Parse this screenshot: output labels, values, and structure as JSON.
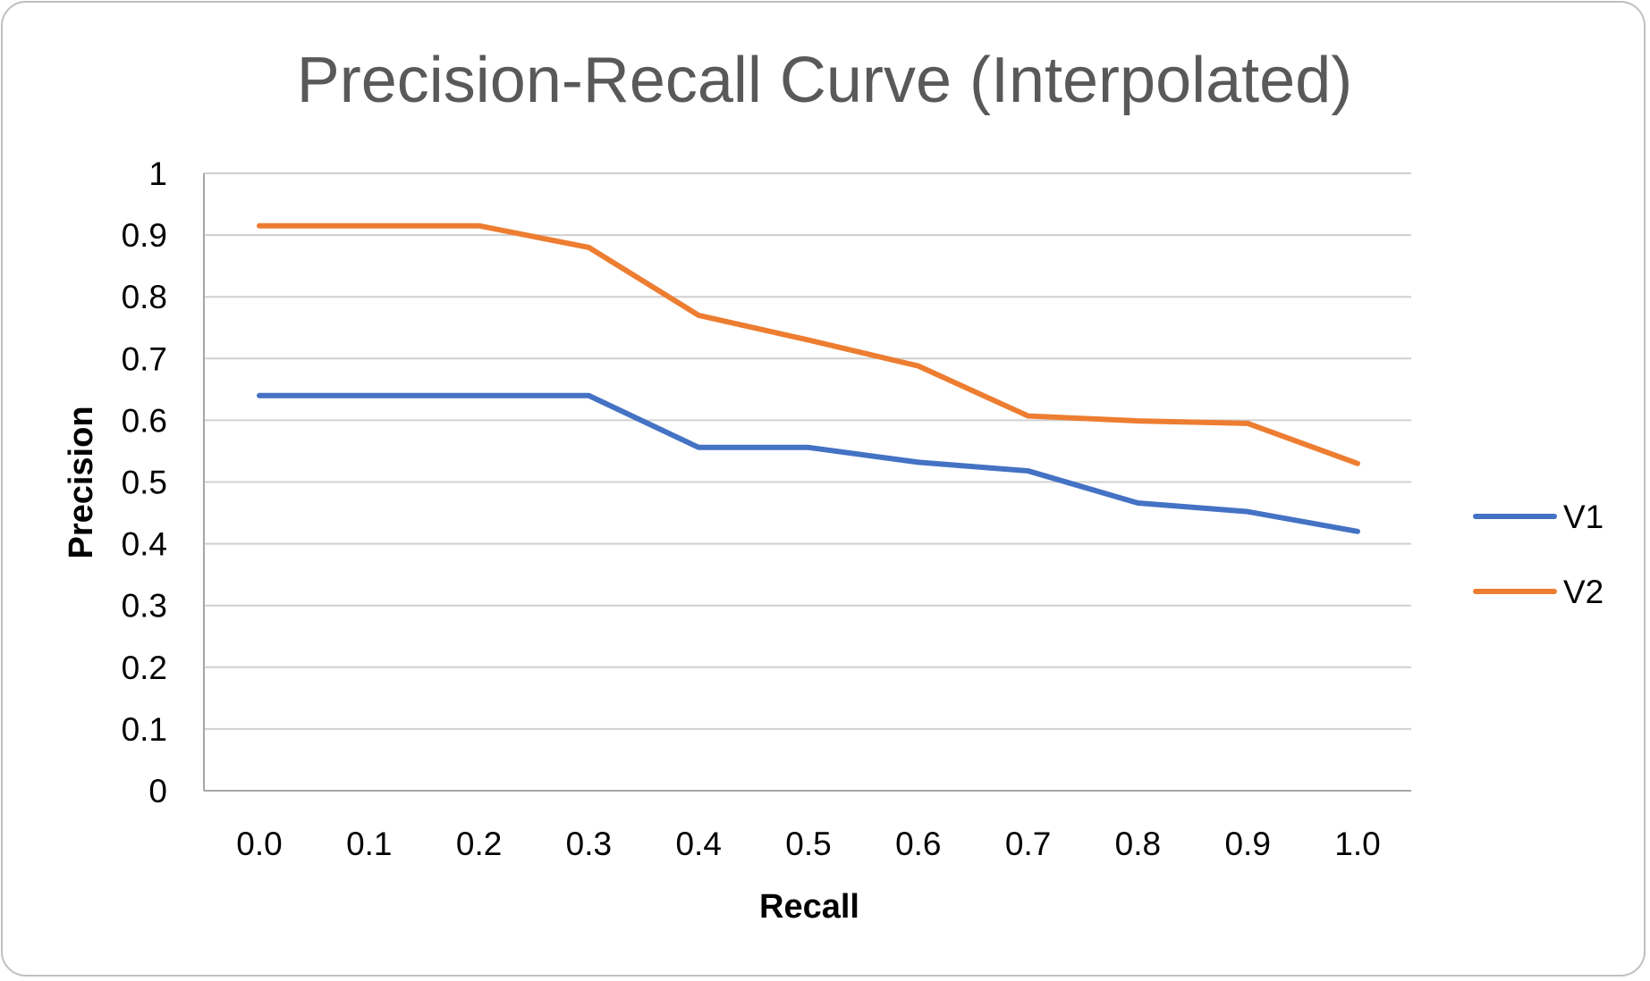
{
  "chart_data": {
    "type": "line",
    "title": "Precision-Recall Curve (Interpolated)",
    "xlabel": "Recall",
    "ylabel": "Precision",
    "categories": [
      "0.0",
      "0.1",
      "0.2",
      "0.3",
      "0.4",
      "0.5",
      "0.6",
      "0.7",
      "0.8",
      "0.9",
      "1.0"
    ],
    "y_ticks": [
      "0",
      "0.1",
      "0.2",
      "0.3",
      "0.4",
      "0.5",
      "0.6",
      "0.7",
      "0.8",
      "0.9",
      "1"
    ],
    "ylim": [
      0,
      1
    ],
    "grid": "horizontal",
    "legend": "right",
    "series": [
      {
        "name": "V1",
        "color": "#4472C4",
        "values": [
          0.64,
          0.64,
          0.64,
          0.64,
          0.556,
          0.556,
          0.532,
          0.518,
          0.466,
          0.452,
          0.42
        ]
      },
      {
        "name": "V2",
        "color": "#ED7D31",
        "values": [
          0.915,
          0.915,
          0.915,
          0.88,
          0.77,
          0.73,
          0.688,
          0.607,
          0.599,
          0.595,
          0.53
        ]
      }
    ]
  }
}
